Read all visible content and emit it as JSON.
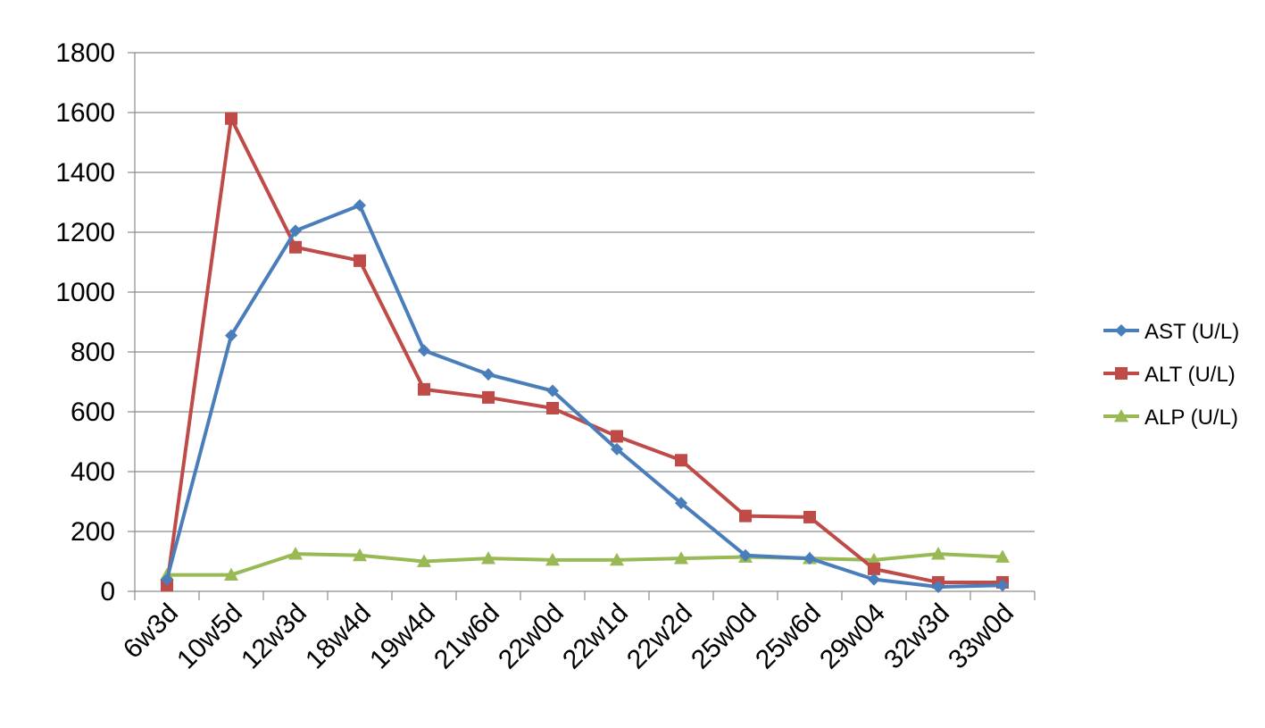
{
  "chart_data": {
    "type": "line",
    "title": "",
    "xlabel": "",
    "ylabel": "",
    "categories": [
      "6w3d",
      "10w5d",
      "12w3d",
      "18w4d",
      "19w4d",
      "21w6d",
      "22w0d",
      "22w1d",
      "22w2d",
      "25w0d",
      "25w6d",
      "29w04",
      "32w3d",
      "33w0d"
    ],
    "ylim": [
      0,
      1800
    ],
    "yticks": [
      0,
      200,
      400,
      600,
      800,
      1000,
      1200,
      1400,
      1600,
      1800
    ],
    "ytick_labels": [
      "0",
      "200",
      "400",
      "600",
      "800",
      "1000",
      "1200",
      "1400",
      "1600",
      "1800"
    ],
    "grid": true,
    "legend_position": "right",
    "series": [
      {
        "name": "AST (U/L)",
        "color": "#4a7ebb",
        "marker": "diamond",
        "values": [
          40,
          855,
          1205,
          1290,
          805,
          725,
          670,
          475,
          295,
          120,
          110,
          40,
          15,
          20
        ]
      },
      {
        "name": "ALT (U/L)",
        "color": "#be4b48",
        "marker": "square",
        "values": [
          20,
          1580,
          1150,
          1105,
          675,
          648,
          612,
          518,
          438,
          252,
          248,
          75,
          30,
          30
        ]
      },
      {
        "name": "ALP (U/L)",
        "color": "#98b954",
        "marker": "triangle",
        "values": [
          55,
          55,
          125,
          120,
          100,
          110,
          105,
          105,
          110,
          115,
          110,
          105,
          125,
          115
        ]
      }
    ]
  }
}
